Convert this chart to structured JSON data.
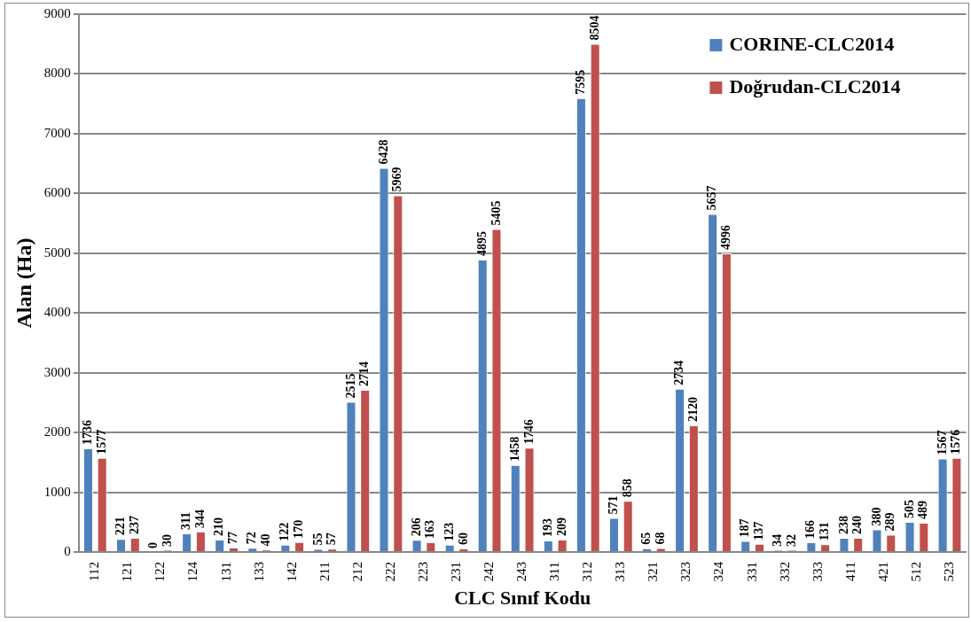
{
  "chart_data": {
    "type": "bar",
    "xlabel": "CLC Sınıf Kodu",
    "ylabel": "Alan (Ha)",
    "categories": [
      "112",
      "121",
      "122",
      "124",
      "131",
      "133",
      "142",
      "211",
      "212",
      "222",
      "223",
      "231",
      "242",
      "243",
      "311",
      "312",
      "313",
      "321",
      "323",
      "324",
      "331",
      "332",
      "333",
      "411",
      "421",
      "512",
      "523"
    ],
    "series": [
      {
        "name": "CORINE-CLC2014",
        "color": "#4f81bd",
        "values": [
          1736,
          221,
          0,
          311,
          210,
          72,
          122,
          55,
          2515,
          6428,
          206,
          123,
          4895,
          1458,
          193,
          7595,
          571,
          65,
          2734,
          5657,
          187,
          34,
          166,
          238,
          380,
          505,
          1567
        ]
      },
      {
        "name": "Doğrudan-CLC2014",
        "color": "#c0504d",
        "values": [
          1577,
          237,
          30,
          344,
          77,
          40,
          170,
          57,
          2714,
          5969,
          163,
          60,
          5405,
          1746,
          209,
          8504,
          858,
          68,
          2120,
          4996,
          137,
          32,
          131,
          240,
          289,
          489,
          1576
        ]
      }
    ],
    "ylim": [
      0,
      9000
    ],
    "yticks": [
      0,
      1000,
      2000,
      3000,
      4000,
      5000,
      6000,
      7000,
      8000,
      9000
    ],
    "grid": "y",
    "legend": "top right",
    "data_labels": true
  }
}
